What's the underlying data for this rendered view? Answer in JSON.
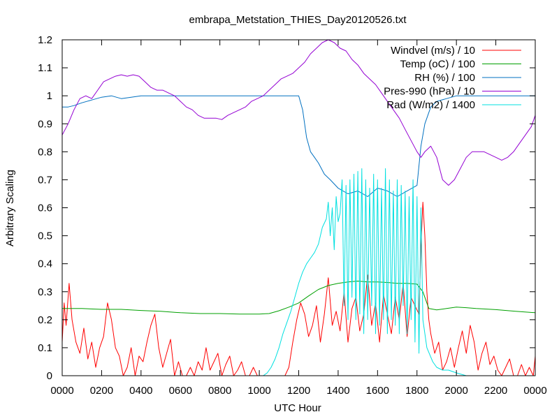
{
  "chart_data": {
    "type": "line",
    "title": "embrapa_Metstation_THIES_Day20120526.txt",
    "xlabel": "UTC Hour",
    "ylabel": "Arbitrary Scaling",
    "xlim": [
      0,
      24
    ],
    "ylim": [
      0,
      1.2
    ],
    "x_ticks": [
      {
        "value": 0,
        "label": "0000"
      },
      {
        "value": 2,
        "label": "0200"
      },
      {
        "value": 4,
        "label": "0400"
      },
      {
        "value": 6,
        "label": "0600"
      },
      {
        "value": 8,
        "label": "0800"
      },
      {
        "value": 10,
        "label": "1000"
      },
      {
        "value": 12,
        "label": "1200"
      },
      {
        "value": 14,
        "label": "1400"
      },
      {
        "value": 16,
        "label": "1600"
      },
      {
        "value": 18,
        "label": "1800"
      },
      {
        "value": 20,
        "label": "2000"
      },
      {
        "value": 22,
        "label": "2200"
      },
      {
        "value": 24,
        "label": "0000"
      }
    ],
    "y_ticks": [
      {
        "value": 0,
        "label": "0"
      },
      {
        "value": 0.1,
        "label": "0.1"
      },
      {
        "value": 0.2,
        "label": "0.2"
      },
      {
        "value": 0.3,
        "label": "0.3"
      },
      {
        "value": 0.4,
        "label": "0.4"
      },
      {
        "value": 0.5,
        "label": "0.5"
      },
      {
        "value": 0.6,
        "label": "0.6"
      },
      {
        "value": 0.7,
        "label": "0.7"
      },
      {
        "value": 0.8,
        "label": "0.8"
      },
      {
        "value": 0.9,
        "label": "0.9"
      },
      {
        "value": 1.0,
        "label": "1"
      },
      {
        "value": 1.1,
        "label": "1.1"
      },
      {
        "value": 1.2,
        "label": "1.2"
      }
    ],
    "grid": false,
    "legend_position": "top-right",
    "series": [
      {
        "name": "Windvel (m/s) / 10",
        "color": "#ff0000",
        "x": [
          0,
          0.1,
          0.2,
          0.35,
          0.5,
          0.7,
          0.9,
          1.1,
          1.3,
          1.5,
          1.7,
          1.9,
          2.1,
          2.3,
          2.5,
          2.7,
          2.9,
          3.1,
          3.3,
          3.5,
          3.7,
          3.9,
          4.1,
          4.3,
          4.5,
          4.7,
          4.9,
          5.1,
          5.3,
          5.5,
          5.7,
          5.9,
          6.1,
          6.3,
          6.5,
          6.7,
          6.9,
          7.1,
          7.3,
          7.5,
          7.7,
          7.9,
          8.1,
          8.3,
          8.5,
          8.7,
          8.9,
          9.1,
          9.3,
          9.5,
          9.7,
          9.9,
          10.1,
          10.3,
          10.5,
          10.7,
          10.9,
          11.1,
          11.3,
          11.5,
          11.7,
          11.9,
          12.1,
          12.3,
          12.5,
          12.7,
          12.9,
          13.1,
          13.3,
          13.5,
          13.7,
          13.9,
          14.1,
          14.3,
          14.5,
          14.7,
          14.9,
          15.1,
          15.3,
          15.5,
          15.7,
          15.9,
          16.1,
          16.3,
          16.5,
          16.7,
          16.9,
          17.1,
          17.3,
          17.5,
          17.7,
          17.9,
          18.1,
          18.2,
          18.3,
          18.4,
          18.5,
          18.6,
          18.7,
          18.9,
          19.1,
          19.3,
          19.5,
          19.7,
          19.9,
          20.1,
          20.3,
          20.5,
          20.7,
          20.9,
          21.1,
          21.3,
          21.5,
          21.7,
          21.9,
          22.1,
          22.3,
          22.5,
          22.7,
          22.9,
          23.1,
          23.3,
          23.5,
          23.7,
          23.9,
          24
        ],
        "y": [
          0.12,
          0.26,
          0.18,
          0.33,
          0.2,
          0.12,
          0.08,
          0.17,
          0.06,
          0.12,
          0.03,
          0.1,
          0.14,
          0.26,
          0.2,
          0.1,
          0.07,
          0.0,
          0.03,
          0.1,
          0.0,
          0.07,
          0.05,
          0.12,
          0.18,
          0.22,
          0.1,
          0.03,
          0.08,
          0.13,
          0.0,
          0.05,
          0.0,
          0.0,
          0.03,
          0.0,
          0.05,
          0.02,
          0.1,
          0.02,
          0.05,
          0.08,
          0.0,
          0.04,
          0.07,
          0.0,
          0.02,
          0.05,
          0.0,
          0.0,
          0.03,
          0.0,
          0.0,
          0.0,
          0.0,
          0.0,
          0.0,
          0.0,
          0.0,
          0.03,
          0.12,
          0.2,
          0.26,
          0.22,
          0.14,
          0.18,
          0.25,
          0.12,
          0.22,
          0.35,
          0.18,
          0.23,
          0.16,
          0.3,
          0.12,
          0.24,
          0.28,
          0.16,
          0.22,
          0.36,
          0.18,
          0.26,
          0.12,
          0.29,
          0.22,
          0.15,
          0.28,
          0.2,
          0.33,
          0.14,
          0.28,
          0.25,
          0.22,
          0.46,
          0.62,
          0.5,
          0.3,
          0.2,
          0.15,
          0.08,
          0.12,
          0.02,
          0.05,
          0.1,
          0.03,
          0.1,
          0.16,
          0.08,
          0.18,
          0.12,
          0.02,
          0.08,
          0.12,
          0.04,
          0.07,
          0.02,
          0.0,
          0.03,
          0.06,
          0.0,
          0.0,
          0.04,
          0.0,
          0.03,
          0.0,
          0.07
        ]
      },
      {
        "name": "Temp (oC) / 100",
        "color": "#00a000",
        "x": [
          0,
          1,
          2,
          3,
          4,
          5,
          6,
          7,
          8,
          9,
          10,
          10.5,
          11,
          11.5,
          12,
          12.5,
          13,
          13.5,
          14,
          14.5,
          15,
          15.5,
          16,
          16.5,
          17,
          17.5,
          18,
          18.3,
          18.6,
          19,
          19.5,
          20,
          20.5,
          21,
          22,
          23,
          24
        ],
        "y": [
          0.24,
          0.24,
          0.237,
          0.237,
          0.233,
          0.23,
          0.225,
          0.222,
          0.222,
          0.22,
          0.22,
          0.222,
          0.232,
          0.245,
          0.26,
          0.285,
          0.308,
          0.322,
          0.33,
          0.335,
          0.338,
          0.335,
          0.335,
          0.333,
          0.33,
          0.33,
          0.327,
          0.3,
          0.24,
          0.235,
          0.24,
          0.245,
          0.243,
          0.24,
          0.236,
          0.23,
          0.225
        ]
      },
      {
        "name": "RH (%) / 100",
        "color": "#0070c0",
        "x": [
          0,
          0.3,
          0.6,
          1.0,
          1.5,
          2.0,
          2.5,
          3.0,
          3.5,
          4.0,
          5,
          6,
          7,
          8,
          9,
          10,
          11,
          12.0,
          12.2,
          12.4,
          12.6,
          12.8,
          13.0,
          13.3,
          13.6,
          14.0,
          14.5,
          15.0,
          15.5,
          16.0,
          16.5,
          17.0,
          17.5,
          18.0,
          18.2,
          18.4,
          18.7,
          19.0,
          19.5,
          20.0,
          21,
          22,
          23,
          24
        ],
        "y": [
          0.96,
          0.96,
          0.965,
          0.975,
          0.985,
          0.995,
          1.0,
          0.99,
          0.995,
          1.0,
          1.0,
          1.0,
          1.0,
          1.0,
          1.0,
          1.0,
          1.0,
          1.0,
          0.95,
          0.85,
          0.8,
          0.78,
          0.76,
          0.72,
          0.7,
          0.67,
          0.65,
          0.66,
          0.64,
          0.67,
          0.66,
          0.64,
          0.66,
          0.68,
          0.82,
          0.9,
          0.96,
          0.98,
          0.99,
          1.0,
          1.0,
          1.0,
          1.0,
          1.0
        ]
      },
      {
        "name": "Pres-990 (hPa) / 10",
        "color": "#9400d3",
        "x": [
          0,
          0.3,
          0.6,
          0.9,
          1.2,
          1.5,
          1.8,
          2.1,
          2.4,
          2.7,
          3.0,
          3.3,
          3.6,
          3.9,
          4.2,
          4.5,
          4.8,
          5.1,
          5.4,
          5.7,
          6.0,
          6.3,
          6.6,
          6.9,
          7.2,
          7.5,
          7.8,
          8.1,
          8.4,
          8.7,
          9.0,
          9.3,
          9.6,
          9.9,
          10.2,
          10.5,
          10.8,
          11.1,
          11.4,
          11.7,
          12.0,
          12.3,
          12.6,
          12.9,
          13.2,
          13.5,
          13.8,
          14.1,
          14.4,
          14.7,
          15.0,
          15.3,
          15.6,
          15.9,
          16.2,
          16.5,
          16.8,
          17.1,
          17.4,
          17.7,
          18.0,
          18.2,
          18.4,
          18.7,
          19.0,
          19.3,
          19.6,
          19.9,
          20.2,
          20.5,
          20.8,
          21.1,
          21.4,
          21.7,
          22.0,
          22.3,
          22.6,
          22.9,
          23.2,
          23.5,
          23.8,
          24
        ],
        "y": [
          0.86,
          0.9,
          0.95,
          0.99,
          1.0,
          0.99,
          1.02,
          1.05,
          1.06,
          1.07,
          1.075,
          1.07,
          1.075,
          1.07,
          1.05,
          1.03,
          1.02,
          1.02,
          1.01,
          1.0,
          0.98,
          0.96,
          0.95,
          0.93,
          0.92,
          0.92,
          0.92,
          0.915,
          0.93,
          0.94,
          0.95,
          0.96,
          0.98,
          0.99,
          1.0,
          1.02,
          1.04,
          1.06,
          1.07,
          1.08,
          1.1,
          1.12,
          1.15,
          1.17,
          1.19,
          1.2,
          1.19,
          1.17,
          1.16,
          1.13,
          1.11,
          1.08,
          1.06,
          1.04,
          1.01,
          0.98,
          0.95,
          0.92,
          0.88,
          0.84,
          0.8,
          0.78,
          0.8,
          0.82,
          0.78,
          0.7,
          0.68,
          0.7,
          0.74,
          0.78,
          0.8,
          0.8,
          0.8,
          0.79,
          0.78,
          0.77,
          0.78,
          0.8,
          0.83,
          0.86,
          0.89,
          0.93
        ]
      },
      {
        "name": "Rad (W/m2) / 1400",
        "color": "#00e0e0",
        "x": [
          10.0,
          10.2,
          10.4,
          10.6,
          10.8,
          11.0,
          11.2,
          11.4,
          11.6,
          11.8,
          12.0,
          12.2,
          12.4,
          12.6,
          12.8,
          13.0,
          13.2,
          13.4,
          13.5,
          13.6,
          13.7,
          13.8,
          13.9,
          14.0,
          14.1,
          14.2,
          14.3,
          14.4,
          14.5,
          14.6,
          14.7,
          14.8,
          14.9,
          15.0,
          15.1,
          15.2,
          15.3,
          15.4,
          15.5,
          15.6,
          15.7,
          15.8,
          15.9,
          16.0,
          16.1,
          16.2,
          16.3,
          16.4,
          16.5,
          16.6,
          16.7,
          16.8,
          16.9,
          17.0,
          17.1,
          17.2,
          17.3,
          17.4,
          17.5,
          17.6,
          17.7,
          17.8,
          17.9,
          18.0,
          18.1,
          18.2,
          18.3,
          18.5,
          18.8,
          19.0,
          19.3,
          19.6,
          20.0,
          20.5,
          21.0
        ],
        "y": [
          0.0,
          0.0,
          0.01,
          0.03,
          0.06,
          0.1,
          0.15,
          0.19,
          0.23,
          0.28,
          0.33,
          0.37,
          0.4,
          0.42,
          0.44,
          0.47,
          0.53,
          0.56,
          0.62,
          0.5,
          0.6,
          0.45,
          0.64,
          0.55,
          0.58,
          0.7,
          0.25,
          0.68,
          0.2,
          0.7,
          0.28,
          0.72,
          0.2,
          0.73,
          0.22,
          0.74,
          0.15,
          0.7,
          0.2,
          0.67,
          0.25,
          0.72,
          0.15,
          0.7,
          0.18,
          0.67,
          0.2,
          0.74,
          0.15,
          0.7,
          0.2,
          0.66,
          0.18,
          0.7,
          0.15,
          0.68,
          0.25,
          0.66,
          0.15,
          0.64,
          0.2,
          0.7,
          0.12,
          0.64,
          0.08,
          0.6,
          0.2,
          0.1,
          0.05,
          0.03,
          0.02,
          0.02,
          0.01,
          0.0,
          0.0
        ]
      }
    ]
  }
}
